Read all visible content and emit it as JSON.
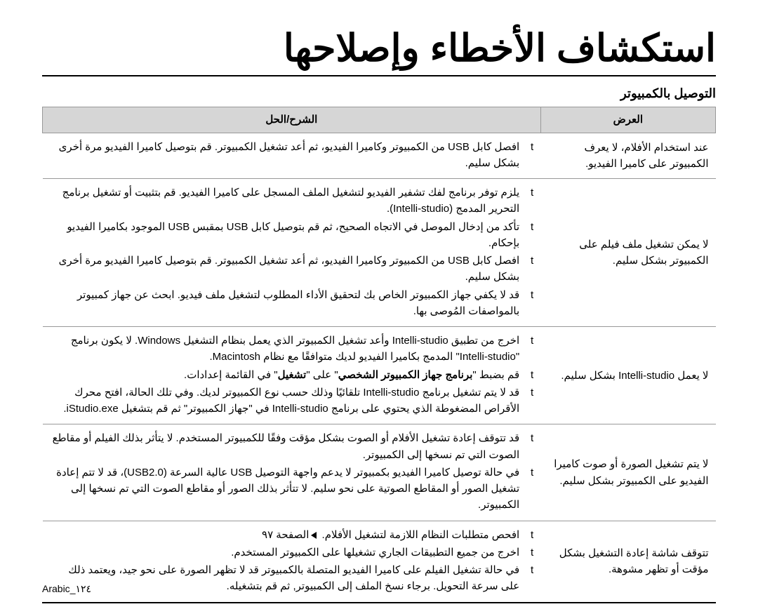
{
  "title": "استكشاف الأخطاء وإصلاحها",
  "section": "التوصيل بالكمبيوتر",
  "headers": {
    "symptom": "العرض",
    "solution": "الشرح/الحل"
  },
  "rows": [
    {
      "symptom": "عند استخدام الأفلام، لا يعرف الكمبيوتر على كاميرا الفيديو.",
      "solutions": [
        "افصل كابل USB من الكمبيوتر وكاميرا الفيديو، ثم أعد تشغيل الكمبيوتر. قم بتوصيل كاميرا الفيديو مرة أخرى بشكل سليم."
      ]
    },
    {
      "symptom": "لا يمكن تشغيل ملف فيلم على الكمبيوتر بشكل سليم.",
      "solutions": [
        "يلزم توفر برنامج لفك تشفير الفيديو لتشغيل الملف المسجل على كاميرا الفيديو. قم بتثبيت أو تشغيل برنامج التحرير المدمج (Intelli-studio).",
        "تأكد من إدخال الموصل في الاتجاه الصحيح، ثم قم بتوصيل كابل USB بمقبس USB الموجود بكاميرا الفيديو بإحكام.",
        "افصل كابل USB من الكمبيوتر وكاميرا الفيديو، ثم أعد تشغيل الكمبيوتر. قم بتوصيل كاميرا الفيديو مرة أخرى بشكل سليم.",
        "قد لا يكفي جهاز الكمبيوتر الخاص بك لتحقيق الأداء المطلوب لتشغيل ملف فيديو. ابحث عن جهاز كمبيوتر بالمواصفات المُوصى بها."
      ]
    },
    {
      "symptom": "لا يعمل Intelli-studio بشكل سليم.",
      "solutions": [
        "اخرج من تطبيق Intelli-studio وأعد تشغيل الكمبيوتر الذي يعمل بنظام التشغيل Windows. لا يكون برنامج \"Intelli-studio\" المدمج بكاميرا الفيديو لديك متوافقًا مع نظام Macintosh.",
        "قم بضبط \"برنامج جهاز الكمبيوتر الشخصي\" على \"تشغيل\" في القائمة إعدادات.",
        "قد لا يتم تشغيل برنامج Intelli-studio تلقائيًا وذلك حسب نوع الكمبيوتر لديك. وفي تلك الحالة، افتح محرك الأقراص المضغوطة الذي يحتوي على برنامج Intelli-studio في \"جهاز الكمبيوتر\" ثم قم بتشغيل iStudio.exe."
      ]
    },
    {
      "symptom": "لا يتم تشغيل الصورة أو صوت كاميرا الفيديو على الكمبيوتر بشكل سليم.",
      "solutions": [
        "قد تتوقف إعادة تشغيل الأفلام أو الصوت بشكل مؤقت وفقًا للكمبيوتر المستخدم. لا يتأثر بذلك الفيلم أو مقاطع الصوت التي تم نسخها إلى الكمبيوتر.",
        "في حالة توصيل كاميرا الفيديو بكمبيوتر لا يدعم واجهة التوصيل USB عالية السرعة (USB2.0)، قد لا تتم إعادة تشغيل الصور أو المقاطع الصوتية على نحو سليم. لا تتأثر بذلك الصور أو مقاطع الصوت التي تم نسخها إلى الكمبيوتر."
      ]
    },
    {
      "symptom": "تتوقف شاشة إعادة التشغيل بشكل مؤقت أو تظهر مشوهة.",
      "solutions": [
        "افحص متطلبات النظام اللازمة لتشغيل الأفلام. ◄الصفحة ٩٧",
        "اخرج من جميع التطبيقات الجاري تشغيلها على الكمبيوتر المستخدم.",
        "في حالة تشغيل الفيلم على كاميرا الفيديو المتصلة بالكمبيوتر قد لا تظهر الصورة على نحو جيد، ويعتمد ذلك على سرعة التحويل. برجاء نسخ الملف إلى الكمبيوتر, ثم قم بتشغيله."
      ]
    }
  ],
  "footer": {
    "lang": "Arabic",
    "page": "١٢٤"
  }
}
